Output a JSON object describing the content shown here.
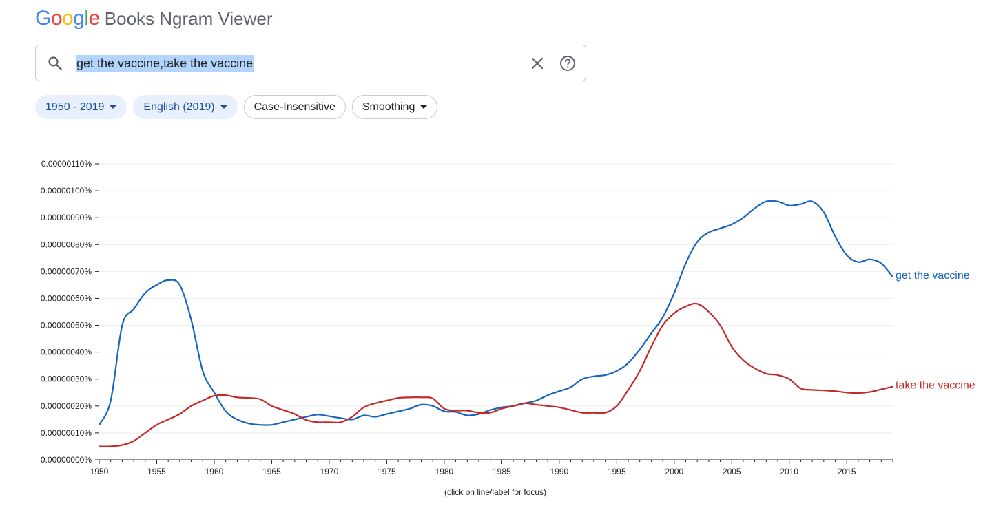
{
  "app": {
    "logo_text": "Google",
    "product_name": "Books Ngram Viewer",
    "logo_colors": [
      "#4285F4",
      "#EA4335",
      "#FBBC05",
      "#4285F4",
      "#34A853",
      "#EA4335"
    ]
  },
  "search": {
    "query": "get the vaccine,take the vaccine",
    "search_icon": "search-icon",
    "clear_icon": "close-icon",
    "help_icon": "help-icon"
  },
  "filters": {
    "year_range": "1950 - 2019",
    "corpus": "English (2019)",
    "case": "Case-Insensitive",
    "smoothing": "Smoothing"
  },
  "chart_data": {
    "type": "line",
    "title": "",
    "xlabel": "",
    "ylabel": "",
    "xlim": [
      1950,
      2019
    ],
    "ylim": [
      0,
      1.1e-06
    ],
    "x_ticks": [
      1950,
      1955,
      1960,
      1965,
      1970,
      1975,
      1980,
      1985,
      1990,
      1995,
      2000,
      2005,
      2010,
      2015
    ],
    "y_ticks": [
      {
        "value": 0,
        "label": "0.00000000%"
      },
      {
        "value": 1e-07,
        "label": "0.00000010%"
      },
      {
        "value": 2e-07,
        "label": "0.00000020%"
      },
      {
        "value": 3e-07,
        "label": "0.00000030%"
      },
      {
        "value": 4e-07,
        "label": "0.00000040%"
      },
      {
        "value": 5e-07,
        "label": "0.00000050%"
      },
      {
        "value": 6e-07,
        "label": "0.00000060%"
      },
      {
        "value": 7e-07,
        "label": "0.00000070%"
      },
      {
        "value": 8e-07,
        "label": "0.00000080%"
      },
      {
        "value": 9e-07,
        "label": "0.00000090%"
      },
      {
        "value": 1e-06,
        "label": "0.00000100%"
      },
      {
        "value": 1.1e-06,
        "label": "0.00000110%"
      }
    ],
    "grid": true,
    "legend": "end-of-line labels",
    "note": "(click on line/label for focus)",
    "series": [
      {
        "name": "get the vaccine",
        "color": "#1565c0",
        "x": [
          1950,
          1951,
          1952,
          1953,
          1954,
          1955,
          1956,
          1957,
          1958,
          1959,
          1960,
          1961,
          1962,
          1963,
          1964,
          1965,
          1966,
          1967,
          1968,
          1969,
          1970,
          1971,
          1972,
          1973,
          1974,
          1975,
          1976,
          1977,
          1978,
          1979,
          1980,
          1981,
          1982,
          1983,
          1984,
          1985,
          1986,
          1987,
          1988,
          1989,
          1990,
          1991,
          1992,
          1993,
          1994,
          1995,
          1996,
          1997,
          1998,
          1999,
          2000,
          2001,
          2002,
          2003,
          2004,
          2005,
          2006,
          2007,
          2008,
          2009,
          2010,
          2011,
          2012,
          2013,
          2014,
          2015,
          2016,
          2017,
          2018,
          2019
        ],
        "values": [
          1.3e-07,
          2.2e-07,
          5e-07,
          5.6e-07,
          6.2e-07,
          6.5e-07,
          6.68e-07,
          6.5e-07,
          5.2e-07,
          3.3e-07,
          2.5e-07,
          1.8e-07,
          1.5e-07,
          1.35e-07,
          1.3e-07,
          1.3e-07,
          1.4e-07,
          1.5e-07,
          1.6e-07,
          1.68e-07,
          1.62e-07,
          1.55e-07,
          1.5e-07,
          1.65e-07,
          1.6e-07,
          1.7e-07,
          1.8e-07,
          1.9e-07,
          2.05e-07,
          2e-07,
          1.8e-07,
          1.78e-07,
          1.65e-07,
          1.7e-07,
          1.85e-07,
          1.95e-07,
          2e-07,
          2.1e-07,
          2.2e-07,
          2.4e-07,
          2.55e-07,
          2.7e-07,
          3e-07,
          3.1e-07,
          3.15e-07,
          3.3e-07,
          3.6e-07,
          4.1e-07,
          4.7e-07,
          5.3e-07,
          6.2e-07,
          7.3e-07,
          8.1e-07,
          8.45e-07,
          8.6e-07,
          8.75e-07,
          9e-07,
          9.35e-07,
          9.6e-07,
          9.6e-07,
          9.45e-07,
          9.5e-07,
          9.6e-07,
          9.2e-07,
          8.3e-07,
          7.6e-07,
          7.35e-07,
          7.45e-07,
          7.3e-07,
          6.8e-07
        ]
      },
      {
        "name": "take the vaccine",
        "color": "#c62828",
        "x": [
          1950,
          1951,
          1952,
          1953,
          1954,
          1955,
          1956,
          1957,
          1958,
          1959,
          1960,
          1961,
          1962,
          1963,
          1964,
          1965,
          1966,
          1967,
          1968,
          1969,
          1970,
          1971,
          1972,
          1973,
          1974,
          1975,
          1976,
          1977,
          1978,
          1979,
          1980,
          1981,
          1982,
          1983,
          1984,
          1985,
          1986,
          1987,
          1988,
          1989,
          1990,
          1991,
          1992,
          1993,
          1994,
          1995,
          1996,
          1997,
          1998,
          1999,
          2000,
          2001,
          2002,
          2003,
          2004,
          2005,
          2006,
          2007,
          2008,
          2009,
          2010,
          2011,
          2012,
          2013,
          2014,
          2015,
          2016,
          2017,
          2018,
          2019
        ],
        "values": [
          5e-08,
          5e-08,
          5.5e-08,
          7e-08,
          1e-07,
          1.3e-07,
          1.5e-07,
          1.7e-07,
          2e-07,
          2.2e-07,
          2.38e-07,
          2.4e-07,
          2.32e-07,
          2.3e-07,
          2.25e-07,
          2e-07,
          1.85e-07,
          1.7e-07,
          1.48e-07,
          1.4e-07,
          1.4e-07,
          1.4e-07,
          1.6e-07,
          1.95e-07,
          2.1e-07,
          2.2e-07,
          2.3e-07,
          2.32e-07,
          2.32e-07,
          2.28e-07,
          1.9e-07,
          1.83e-07,
          1.83e-07,
          1.75e-07,
          1.75e-07,
          1.9e-07,
          2e-07,
          2.1e-07,
          2.05e-07,
          2e-07,
          1.95e-07,
          1.85e-07,
          1.75e-07,
          1.75e-07,
          1.75e-07,
          2e-07,
          2.6e-07,
          3.3e-07,
          4.2e-07,
          5e-07,
          5.45e-07,
          5.7e-07,
          5.8e-07,
          5.5e-07,
          5e-07,
          4.2e-07,
          3.7e-07,
          3.4e-07,
          3.2e-07,
          3.15e-07,
          3e-07,
          2.65e-07,
          2.6e-07,
          2.58e-07,
          2.55e-07,
          2.5e-07,
          2.48e-07,
          2.52e-07,
          2.62e-07,
          2.72e-07
        ]
      }
    ]
  }
}
